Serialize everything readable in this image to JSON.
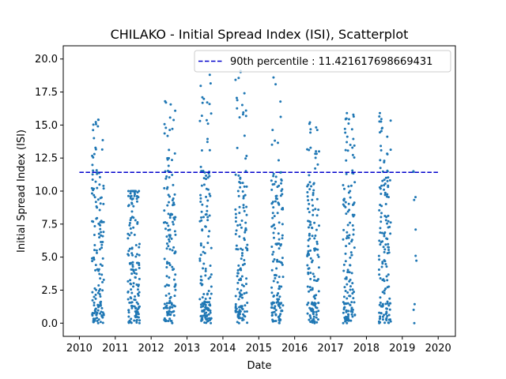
{
  "chart_data": {
    "type": "scatter",
    "title": "CHILAKO - Initial Spread Index (ISI), Scatterplot",
    "xlabel": "Date",
    "ylabel": "Initial Spread Index (ISI)",
    "xlim": [
      2009.55,
      2020.48
    ],
    "ylim": [
      -1.0,
      21.0
    ],
    "x_ticks": [
      2010,
      2011,
      2012,
      2013,
      2014,
      2015,
      2016,
      2017,
      2018,
      2019,
      2020
    ],
    "x_tick_labels": [
      "2010",
      "2011",
      "2012",
      "2013",
      "2014",
      "2015",
      "2016",
      "2017",
      "2018",
      "2019",
      "2020"
    ],
    "y_ticks": [
      0.0,
      2.5,
      5.0,
      7.5,
      10.0,
      12.5,
      15.0,
      17.5,
      20.0
    ],
    "y_tick_labels": [
      "0.0",
      "2.5",
      "5.0",
      "7.5",
      "10.0",
      "12.5",
      "15.0",
      "17.5",
      "20.0"
    ],
    "point_color": "#1f77b4",
    "reference_line": {
      "label": "90th percentile : 11.421617698669431",
      "y": 11.421617698669431,
      "x_start": 2010.0,
      "x_end": 2020.0,
      "color": "#0000cc",
      "style": "dashed"
    },
    "legend_position": "top-right",
    "grid": false,
    "seasons": [
      {
        "x_start": 2010.35,
        "x_end": 2010.68,
        "n": 150,
        "max": 15.4
      },
      {
        "x_start": 2011.35,
        "x_end": 2011.68,
        "n": 150,
        "max": 10.0
      },
      {
        "x_start": 2012.35,
        "x_end": 2012.68,
        "n": 150,
        "max": 16.8
      },
      {
        "x_start": 2013.35,
        "x_end": 2013.68,
        "n": 150,
        "max": 18.8
      },
      {
        "x_start": 2014.35,
        "x_end": 2014.68,
        "n": 150,
        "max": 19.1
      },
      {
        "x_start": 2015.35,
        "x_end": 2015.68,
        "n": 150,
        "max": 18.6
      },
      {
        "x_start": 2016.35,
        "x_end": 2016.68,
        "n": 150,
        "max": 15.2
      },
      {
        "x_start": 2017.35,
        "x_end": 2017.68,
        "n": 150,
        "max": 15.9
      },
      {
        "x_start": 2018.35,
        "x_end": 2018.68,
        "n": 150,
        "max": 15.9
      },
      {
        "x_start": 2019.3,
        "x_end": 2019.4,
        "n": 10,
        "max": 11.5
      }
    ]
  }
}
